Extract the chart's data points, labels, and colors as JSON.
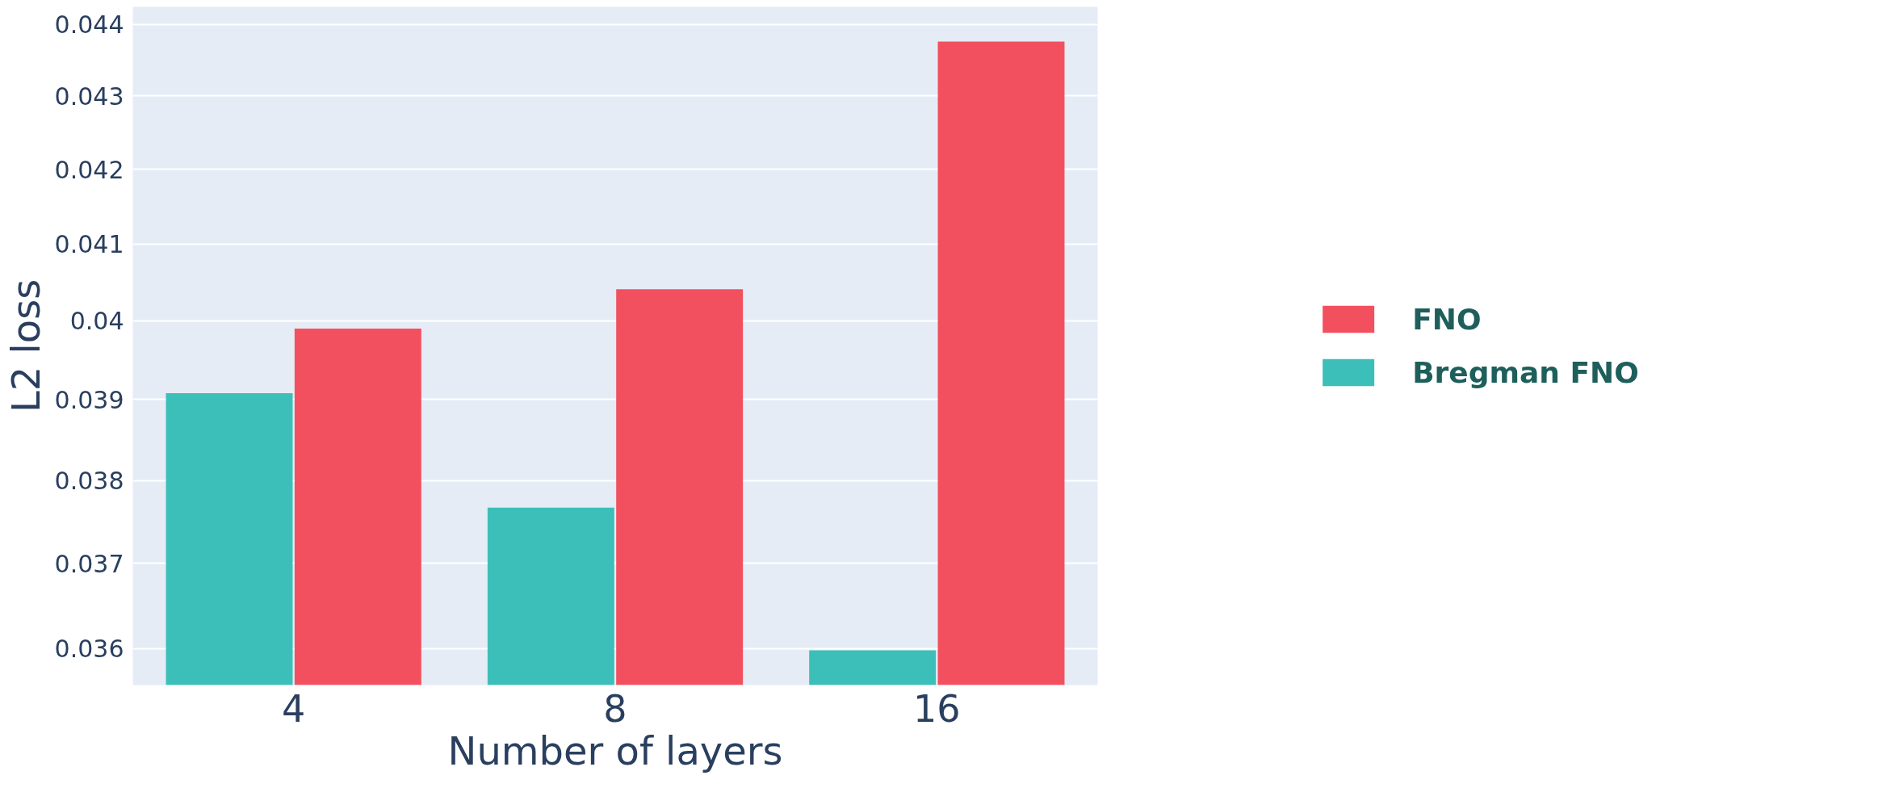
{
  "chart_data": {
    "type": "bar",
    "xlabel": "Number of layers",
    "ylabel": "L2 loss",
    "categories": [
      "4",
      "8",
      "16"
    ],
    "series": [
      {
        "name": "Bregman FNO",
        "color": "#3bbfb8",
        "values": [
          0.03908,
          0.03767,
          0.03598
        ]
      },
      {
        "name": "FNO",
        "color": "#f2505f",
        "values": [
          0.0399,
          0.04041,
          0.04376
        ]
      }
    ],
    "log": "y",
    "ylim": [
      0.03558,
      0.04425
    ],
    "yticks": [
      0.036,
      0.037,
      0.038,
      0.039,
      {
        "value": 0.04,
        "label": "0.04"
      },
      0.041,
      0.042,
      0.043,
      0.044
    ],
    "grid": "y",
    "legend": "right"
  }
}
